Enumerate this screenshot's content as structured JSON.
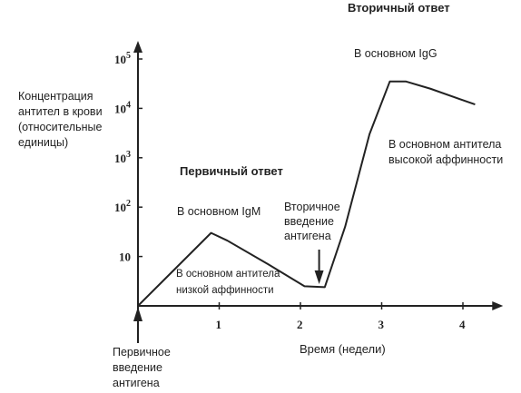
{
  "chart_data": {
    "type": "line",
    "title": "",
    "ylabel_lines": [
      "Концентрация",
      "антител в крови",
      "(относительные",
      "единицы)"
    ],
    "xlabel": "Время (недели)",
    "y_scale": "log",
    "ylim": [
      1,
      100000
    ],
    "xlim": [
      0,
      4.45
    ],
    "x_ticks": [
      {
        "value": 1,
        "label": "1"
      },
      {
        "value": 2,
        "label": "2"
      },
      {
        "value": 3,
        "label": "3"
      },
      {
        "value": 4,
        "label": "4"
      }
    ],
    "y_ticks": [
      {
        "value": 10,
        "base": "10",
        "exp": ""
      },
      {
        "value": 100,
        "base": "10",
        "exp": "2"
      },
      {
        "value": 1000,
        "base": "10",
        "exp": "3"
      },
      {
        "value": 10000,
        "base": "10",
        "exp": "4"
      },
      {
        "value": 100000,
        "base": "10",
        "exp": "5"
      }
    ],
    "series": [
      {
        "color": "#222222",
        "points": [
          [
            0,
            1
          ],
          [
            0.9,
            30
          ],
          [
            1.1,
            21
          ],
          [
            1.6,
            7
          ],
          [
            2.05,
            2.5
          ],
          [
            2.3,
            2.4
          ],
          [
            2.55,
            40
          ],
          [
            2.85,
            3000
          ],
          [
            3.1,
            35000
          ],
          [
            3.3,
            35000
          ],
          [
            3.6,
            25000
          ],
          [
            4.15,
            12000
          ]
        ]
      }
    ],
    "annotations": [
      {
        "key": "secondary_response",
        "text": "Вторичный ответ"
      },
      {
        "key": "mostly_igg",
        "text": "В основном IgG"
      },
      {
        "key": "high_affinity",
        "lines": [
          "В основном антитела",
          "высокой аффинности"
        ]
      },
      {
        "key": "primary_response",
        "text": "Первичный ответ"
      },
      {
        "key": "mostly_igm",
        "text": "В основном IgM"
      },
      {
        "key": "second_injection",
        "lines": [
          "Вторичное",
          "введение",
          "антигена"
        ]
      },
      {
        "key": "low_affinity",
        "lines": [
          "В основном антитела",
          "низкой аффинности"
        ]
      },
      {
        "key": "first_injection",
        "lines": [
          "Первичное",
          "введение",
          "антигена"
        ]
      }
    ]
  }
}
